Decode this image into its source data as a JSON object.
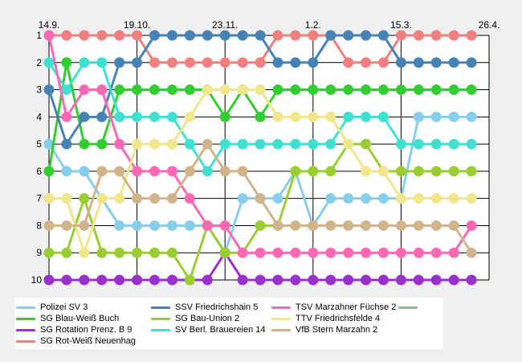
{
  "chart_data": {
    "type": "line",
    "title": "",
    "xlabel": "",
    "ylabel": "",
    "x_ticks": [
      "14.9.",
      "19.10.",
      "23.11.",
      "1.2.",
      "15.3.",
      "26.4."
    ],
    "x_tick_positions": [
      0,
      5,
      10,
      15,
      20,
      25
    ],
    "xlim": [
      0,
      25
    ],
    "ylim": [
      1,
      10
    ],
    "y_ticks": [
      "1",
      "2",
      "3",
      "4",
      "5",
      "6",
      "7",
      "8",
      "9",
      "10"
    ],
    "y_inverted": true,
    "grid": true,
    "legend_position": "bottom",
    "series": [
      {
        "name": "Polizei SV 3",
        "color": "#87ceeb",
        "values": [
          5,
          6,
          6,
          7,
          8,
          8,
          8,
          8,
          8,
          8,
          9,
          7,
          7,
          7,
          6,
          8,
          7,
          7,
          7,
          7,
          7,
          4,
          4,
          4,
          4
        ]
      },
      {
        "name": "SG Blau-Weiß Buch",
        "color": "#32cd32",
        "values": [
          6,
          2,
          5,
          5,
          3,
          3,
          3,
          3,
          3,
          3,
          4,
          3,
          4,
          3,
          3,
          3,
          3,
          3,
          3,
          3,
          3,
          3,
          3,
          3,
          3
        ]
      },
      {
        "name": "SG Rotation Prenz. B 9",
        "color": "#9932cc",
        "values": [
          10,
          10,
          10,
          10,
          10,
          10,
          10,
          10,
          10,
          10,
          9,
          10,
          10,
          10,
          10,
          10,
          10,
          10,
          10,
          10,
          10,
          10,
          10,
          10,
          10
        ]
      },
      {
        "name": "SG Rot-Weiß Neuenhag",
        "color": "#f08080",
        "values": [
          1,
          1,
          1,
          1,
          1,
          1,
          2,
          2,
          2,
          2,
          2,
          2,
          2,
          1,
          1,
          1,
          1,
          2,
          2,
          2,
          1,
          1,
          1,
          1,
          1
        ]
      },
      {
        "name": "SSV Friedrichshain 5",
        "color": "#4682b4",
        "values": [
          3,
          5,
          4,
          4,
          2,
          2,
          1,
          1,
          1,
          1,
          1,
          1,
          1,
          2,
          2,
          2,
          1,
          1,
          1,
          1,
          2,
          2,
          2,
          2,
          2
        ]
      },
      {
        "name": "SG Bau-Union 2",
        "color": "#9acd32",
        "values": [
          9,
          9,
          7,
          9,
          9,
          9,
          9,
          9,
          10,
          8,
          9,
          9,
          8,
          8,
          6,
          6,
          6,
          5,
          5,
          6,
          6,
          6,
          6,
          6,
          6
        ]
      },
      {
        "name": "SV Berl. Brauereien 14",
        "color": "#40e0d0",
        "values": [
          2,
          3,
          2,
          2,
          4,
          4,
          4,
          4,
          5,
          6,
          5,
          5,
          5,
          5,
          5,
          5,
          5,
          4,
          4,
          4,
          5,
          5,
          5,
          5,
          5
        ]
      },
      {
        "name": "TSV Marzahner Füchse 2",
        "color": "#ff69b4",
        "values": [
          1,
          4,
          3,
          3,
          5,
          6,
          6,
          6,
          7,
          8,
          8,
          9,
          9,
          9,
          9,
          9,
          9,
          9,
          9,
          9,
          9,
          9,
          9,
          9,
          8
        ]
      },
      {
        "name": "TTV Friedrichsfelde 4",
        "color": "#f0e68c",
        "values": [
          7,
          7,
          9,
          7,
          7,
          5,
          5,
          5,
          4,
          3,
          3,
          3,
          3,
          4,
          4,
          4,
          4,
          5,
          6,
          6,
          7,
          7,
          7,
          7,
          7
        ]
      },
      {
        "name": "VfB Stern Marzahn 2",
        "color": "#d2b48c",
        "values": [
          8,
          8,
          8,
          6,
          6,
          7,
          7,
          7,
          6,
          5,
          6,
          6,
          7,
          8,
          8,
          8,
          8,
          8,
          8,
          8,
          8,
          8,
          8,
          8,
          9
        ]
      },
      {
        "name": "",
        "color": "#8fbc8f",
        "values": []
      }
    ]
  }
}
